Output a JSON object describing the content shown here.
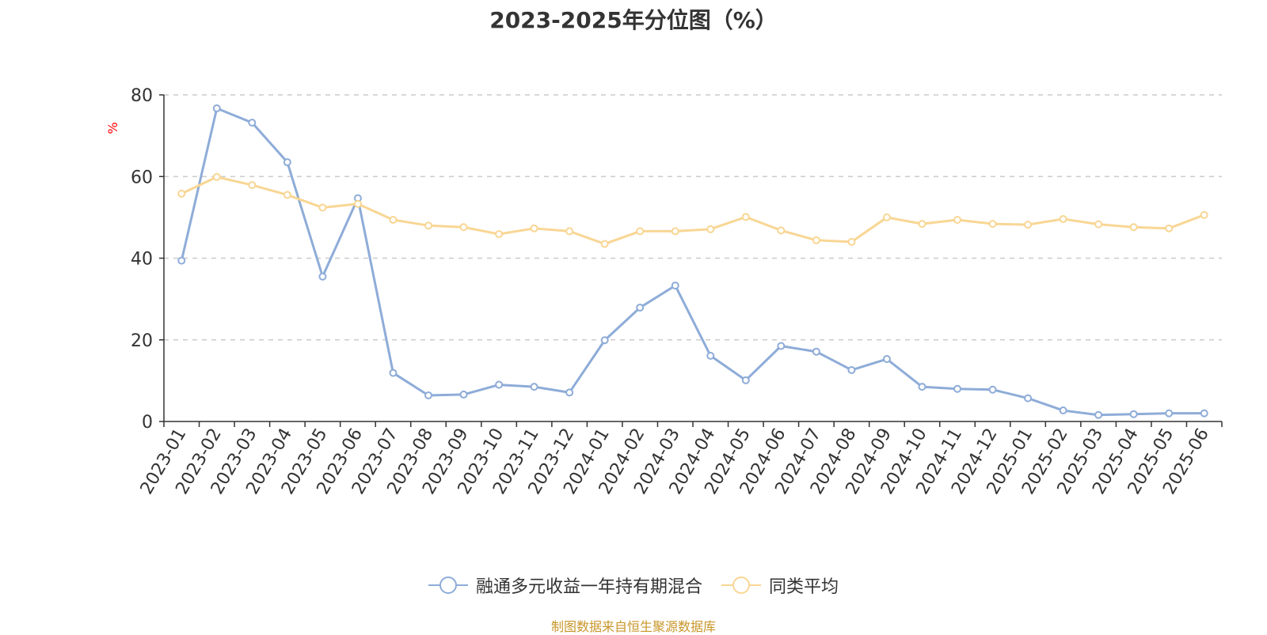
{
  "chart_data": {
    "type": "line",
    "title": "2023-2025年分位图（%）",
    "ylabel": "%",
    "xlabel": "",
    "ylim": [
      0,
      80
    ],
    "yticks": [
      0,
      20,
      40,
      60,
      80
    ],
    "grid": true,
    "legend_position": "bottom",
    "categories": [
      "2023-01",
      "2023-02",
      "2023-03",
      "2023-04",
      "2023-05",
      "2023-06",
      "2023-07",
      "2023-08",
      "2023-09",
      "2023-10",
      "2023-11",
      "2023-12",
      "2024-01",
      "2024-02",
      "2024-03",
      "2024-04",
      "2024-05",
      "2024-06",
      "2024-07",
      "2024-08",
      "2024-09",
      "2024-10",
      "2024-11",
      "2024-12",
      "2025-01",
      "2025-02",
      "2025-03",
      "2025-04",
      "2025-05",
      "2025-06"
    ],
    "series": [
      {
        "name": "融通多元收益一年持有期混合",
        "color": "#8eacd8",
        "values": [
          39.4,
          76.7,
          73.2,
          63.5,
          35.5,
          54.7,
          11.9,
          6.4,
          6.6,
          9.0,
          8.5,
          7.1,
          19.9,
          27.9,
          33.3,
          16.1,
          10.1,
          18.5,
          17.1,
          12.6,
          15.3,
          8.5,
          8.0,
          7.8,
          5.7,
          2.7,
          1.6,
          1.8,
          2.0,
          2.0
        ]
      },
      {
        "name": "同类平均",
        "color": "#f8d694",
        "values": [
          55.8,
          59.9,
          57.9,
          55.5,
          52.4,
          53.3,
          49.4,
          48.0,
          47.6,
          45.9,
          47.3,
          46.6,
          43.5,
          46.6,
          46.6,
          47.1,
          50.1,
          46.8,
          44.4,
          44.0,
          50.0,
          48.4,
          49.4,
          48.4,
          48.2,
          49.6,
          48.3,
          47.6,
          47.3,
          50.6
        ]
      }
    ]
  },
  "source_note": "制图数据来自恒生聚源数据库"
}
